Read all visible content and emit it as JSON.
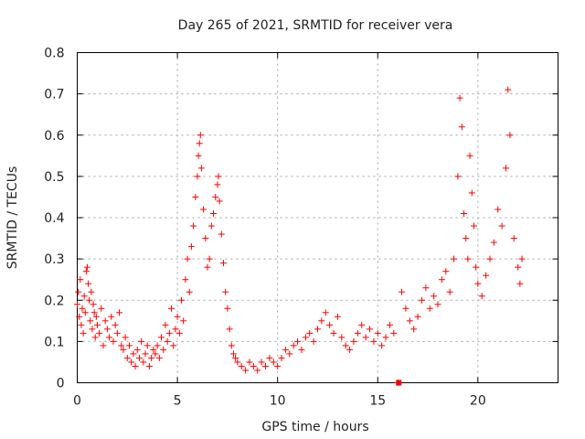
{
  "chart_data": {
    "type": "scatter",
    "title": "Day 265 of 2021, SRMTID for receiver vera",
    "xlabel": "GPS time / hours",
    "ylabel": "SRMTID / TECUs",
    "xlim": [
      0,
      24
    ],
    "ylim": [
      0,
      0.8
    ],
    "xticks": [
      0,
      5,
      10,
      15,
      20
    ],
    "yticks": [
      0,
      0.1,
      0.2,
      0.3,
      0.4,
      0.5,
      0.6,
      0.7,
      0.8
    ],
    "xtick_labels": [
      "0",
      "5",
      "10",
      "15",
      "20"
    ],
    "ytick_labels": [
      "0",
      "0.1",
      "0.2",
      "0.3",
      "0.4",
      "0.5",
      "0.6",
      "0.7",
      "0.8"
    ],
    "grid": true,
    "marker": "+",
    "color": "#ff0000",
    "series": [
      {
        "name": "SRMTID",
        "points": [
          [
            0.0,
            0.19
          ],
          [
            0.05,
            0.22
          ],
          [
            0.1,
            0.16
          ],
          [
            0.15,
            0.25
          ],
          [
            0.2,
            0.14
          ],
          [
            0.25,
            0.18
          ],
          [
            0.3,
            0.12
          ],
          [
            0.35,
            0.21
          ],
          [
            0.4,
            0.17
          ],
          [
            0.45,
            0.27
          ],
          [
            0.5,
            0.28
          ],
          [
            0.55,
            0.24
          ],
          [
            0.6,
            0.2
          ],
          [
            0.65,
            0.15
          ],
          [
            0.7,
            0.22
          ],
          [
            0.75,
            0.13
          ],
          [
            0.8,
            0.19
          ],
          [
            0.85,
            0.17
          ],
          [
            0.9,
            0.11
          ],
          [
            0.95,
            0.16
          ],
          [
            1.0,
            0.14
          ],
          [
            1.1,
            0.12
          ],
          [
            1.2,
            0.18
          ],
          [
            1.3,
            0.09
          ],
          [
            1.4,
            0.15
          ],
          [
            1.5,
            0.13
          ],
          [
            1.6,
            0.11
          ],
          [
            1.7,
            0.16
          ],
          [
            1.8,
            0.1
          ],
          [
            1.9,
            0.14
          ],
          [
            2.0,
            0.12
          ],
          [
            2.1,
            0.17
          ],
          [
            2.2,
            0.09
          ],
          [
            2.3,
            0.08
          ],
          [
            2.4,
            0.11
          ],
          [
            2.5,
            0.06
          ],
          [
            2.6,
            0.09
          ],
          [
            2.7,
            0.05
          ],
          [
            2.8,
            0.07
          ],
          [
            2.9,
            0.04
          ],
          [
            3.0,
            0.08
          ],
          [
            3.1,
            0.06
          ],
          [
            3.2,
            0.1
          ],
          [
            3.3,
            0.05
          ],
          [
            3.4,
            0.07
          ],
          [
            3.5,
            0.09
          ],
          [
            3.6,
            0.04
          ],
          [
            3.7,
            0.06
          ],
          [
            3.8,
            0.08
          ],
          [
            3.9,
            0.07
          ],
          [
            4.0,
            0.09
          ],
          [
            4.1,
            0.06
          ],
          [
            4.2,
            0.11
          ],
          [
            4.3,
            0.08
          ],
          [
            4.4,
            0.14
          ],
          [
            4.5,
            0.1
          ],
          [
            4.6,
            0.12
          ],
          [
            4.7,
            0.18
          ],
          [
            4.8,
            0.09
          ],
          [
            4.9,
            0.13
          ],
          [
            5.0,
            0.16
          ],
          [
            5.1,
            0.12
          ],
          [
            5.2,
            0.2
          ],
          [
            5.3,
            0.15
          ],
          [
            5.4,
            0.25
          ],
          [
            5.5,
            0.3
          ],
          [
            5.6,
            0.22
          ],
          [
            5.7,
            0.33
          ],
          [
            5.8,
            0.38
          ],
          [
            5.9,
            0.45
          ],
          [
            6.0,
            0.5
          ],
          [
            6.05,
            0.55
          ],
          [
            6.1,
            0.58
          ],
          [
            6.15,
            0.6
          ],
          [
            6.2,
            0.52
          ],
          [
            6.3,
            0.42
          ],
          [
            6.4,
            0.35
          ],
          [
            6.5,
            0.28
          ],
          [
            6.6,
            0.3
          ],
          [
            6.7,
            0.38
          ],
          [
            6.8,
            0.41
          ],
          [
            6.9,
            0.45
          ],
          [
            7.0,
            0.48
          ],
          [
            7.05,
            0.5
          ],
          [
            7.1,
            0.44
          ],
          [
            7.2,
            0.36
          ],
          [
            7.3,
            0.29
          ],
          [
            7.4,
            0.22
          ],
          [
            7.5,
            0.18
          ],
          [
            7.6,
            0.13
          ],
          [
            7.7,
            0.09
          ],
          [
            7.8,
            0.07
          ],
          [
            7.9,
            0.06
          ],
          [
            8.0,
            0.05
          ],
          [
            8.2,
            0.04
          ],
          [
            8.4,
            0.03
          ],
          [
            8.6,
            0.05
          ],
          [
            8.8,
            0.04
          ],
          [
            9.0,
            0.03
          ],
          [
            9.2,
            0.05
          ],
          [
            9.4,
            0.04
          ],
          [
            9.6,
            0.06
          ],
          [
            9.8,
            0.05
          ],
          [
            10.0,
            0.04
          ],
          [
            10.2,
            0.06
          ],
          [
            10.4,
            0.08
          ],
          [
            10.6,
            0.07
          ],
          [
            10.8,
            0.09
          ],
          [
            11.0,
            0.1
          ],
          [
            11.2,
            0.08
          ],
          [
            11.4,
            0.11
          ],
          [
            11.6,
            0.12
          ],
          [
            11.8,
            0.1
          ],
          [
            12.0,
            0.13
          ],
          [
            12.2,
            0.15
          ],
          [
            12.4,
            0.17
          ],
          [
            12.6,
            0.14
          ],
          [
            12.8,
            0.12
          ],
          [
            13.0,
            0.16
          ],
          [
            13.2,
            0.11
          ],
          [
            13.4,
            0.09
          ],
          [
            13.6,
            0.08
          ],
          [
            13.8,
            0.1
          ],
          [
            14.0,
            0.12
          ],
          [
            14.2,
            0.14
          ],
          [
            14.4,
            0.11
          ],
          [
            14.6,
            0.13
          ],
          [
            14.8,
            0.1
          ],
          [
            15.0,
            0.12
          ],
          [
            15.2,
            0.09
          ],
          [
            15.4,
            0.11
          ],
          [
            15.6,
            0.14
          ],
          [
            15.8,
            0.12
          ],
          [
            16.0,
            0.0
          ],
          [
            16.2,
            0.22
          ],
          [
            16.4,
            0.18
          ],
          [
            16.6,
            0.15
          ],
          [
            16.8,
            0.13
          ],
          [
            17.0,
            0.16
          ],
          [
            17.2,
            0.2
          ],
          [
            17.4,
            0.23
          ],
          [
            17.6,
            0.18
          ],
          [
            17.8,
            0.21
          ],
          [
            18.0,
            0.19
          ],
          [
            18.2,
            0.25
          ],
          [
            18.4,
            0.27
          ],
          [
            18.6,
            0.22
          ],
          [
            18.8,
            0.3
          ],
          [
            19.0,
            0.5
          ],
          [
            19.1,
            0.69
          ],
          [
            19.2,
            0.62
          ],
          [
            19.3,
            0.41
          ],
          [
            19.4,
            0.35
          ],
          [
            19.5,
            0.3
          ],
          [
            19.6,
            0.55
          ],
          [
            19.7,
            0.46
          ],
          [
            19.8,
            0.38
          ],
          [
            19.9,
            0.28
          ],
          [
            20.0,
            0.24
          ],
          [
            20.2,
            0.21
          ],
          [
            20.4,
            0.26
          ],
          [
            20.6,
            0.3
          ],
          [
            20.8,
            0.34
          ],
          [
            21.0,
            0.42
          ],
          [
            21.2,
            0.38
          ],
          [
            21.4,
            0.52
          ],
          [
            21.5,
            0.71
          ],
          [
            21.6,
            0.6
          ],
          [
            21.8,
            0.35
          ],
          [
            22.0,
            0.28
          ],
          [
            22.1,
            0.24
          ],
          [
            22.2,
            0.3
          ]
        ]
      }
    ],
    "square_marker": [
      16.05,
      0.0
    ]
  }
}
